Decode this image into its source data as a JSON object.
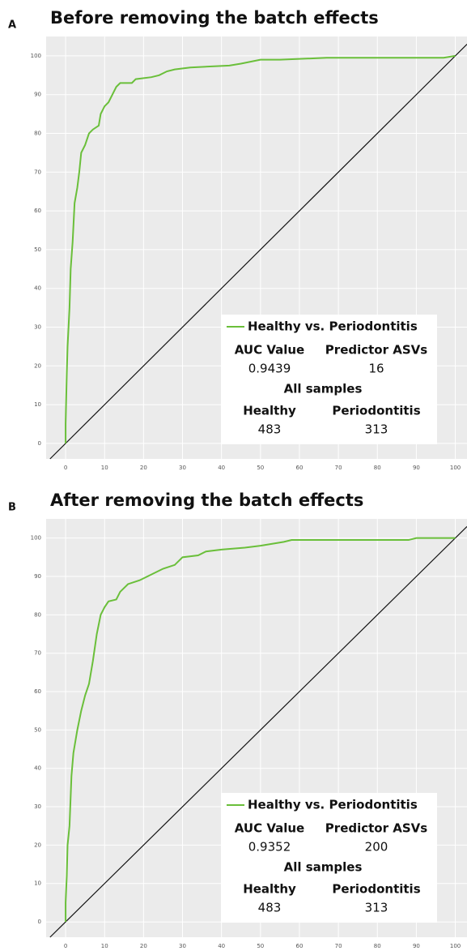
{
  "chart_data": [
    {
      "type": "line",
      "label": "A",
      "title": "Before removing the batch effects",
      "x": [
        0,
        0,
        0.3,
        0.5,
        1,
        1.3,
        1.8,
        2.3,
        3,
        3.5,
        4,
        5,
        6,
        7,
        8.5,
        9,
        10,
        11,
        12,
        13,
        14,
        17,
        18,
        22,
        24,
        26,
        28,
        32,
        42,
        45,
        50,
        55,
        67,
        97,
        100
      ],
      "series": [
        {
          "name": "Healthy vs. Periodontitis",
          "color": "#6abf3a",
          "values": [
            0,
            5,
            18,
            25,
            35,
            45,
            52,
            62,
            66,
            70,
            75,
            77,
            80,
            81,
            82,
            85,
            87,
            88,
            90,
            92,
            93,
            93,
            94,
            94.5,
            95,
            96,
            96.5,
            97,
            97.5,
            98,
            99,
            99,
            99.5,
            99.5,
            100
          ]
        }
      ],
      "xlim": [
        -5,
        103
      ],
      "ylim": [
        -4,
        105
      ],
      "xticks": [
        0,
        10,
        20,
        30,
        40,
        50,
        60,
        70,
        80,
        90,
        100
      ],
      "yticks": [
        0,
        10,
        20,
        30,
        40,
        50,
        60,
        70,
        80,
        90,
        100
      ],
      "grid": true,
      "legend_table": {
        "headers": [
          "AUC Value",
          "Predictor ASVs"
        ],
        "values": [
          0.9439,
          16
        ],
        "group_title": "All samples",
        "groups": [
          "Healthy",
          "Periodontitis"
        ],
        "counts": [
          483,
          313
        ]
      }
    },
    {
      "type": "line",
      "label": "B",
      "title": "After removing the batch effects",
      "x": [
        0,
        0,
        0.3,
        0.5,
        1,
        1.5,
        2,
        3,
        4,
        5,
        6,
        7,
        8,
        9,
        10,
        11,
        13,
        14,
        16,
        19,
        22,
        25,
        28,
        30,
        34,
        36,
        40,
        46,
        50,
        56,
        58,
        88,
        90,
        100
      ],
      "series": [
        {
          "name": "Healthy vs. Periodontitis",
          "color": "#6abf3a",
          "values": [
            0,
            5,
            12,
            20,
            25,
            38,
            44,
            50,
            55,
            59,
            62,
            68,
            75,
            80,
            82,
            83.5,
            84,
            86,
            88,
            89,
            90.5,
            92,
            93,
            95,
            95.5,
            96.5,
            97,
            97.5,
            98,
            99,
            99.5,
            99.5,
            100,
            100
          ]
        }
      ],
      "xlim": [
        -5,
        103
      ],
      "ylim": [
        -4,
        105
      ],
      "xticks": [
        0,
        10,
        20,
        30,
        40,
        50,
        60,
        70,
        80,
        90,
        100
      ],
      "yticks": [
        0,
        10,
        20,
        30,
        40,
        50,
        60,
        70,
        80,
        90,
        100
      ],
      "grid": true,
      "legend_table": {
        "headers": [
          "AUC Value",
          "Predictor ASVs"
        ],
        "values": [
          0.9352,
          200
        ],
        "group_title": "All samples",
        "groups": [
          "Healthy",
          "Periodontitis"
        ],
        "counts": [
          483,
          313
        ]
      }
    }
  ]
}
